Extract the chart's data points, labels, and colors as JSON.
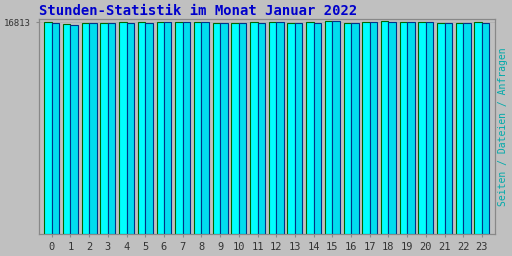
{
  "title": "Stunden-Statistik im Monat Januar 2022",
  "ylabel": "Seiten / Dateien / Anfragen",
  "hours": [
    0,
    1,
    2,
    3,
    4,
    5,
    6,
    7,
    8,
    9,
    10,
    11,
    12,
    13,
    14,
    15,
    16,
    17,
    18,
    19,
    20,
    21,
    22,
    23
  ],
  "values1": [
    16813,
    16650,
    16780,
    16790,
    16800,
    16810,
    16820,
    16840,
    16870,
    16760,
    16790,
    16810,
    16820,
    16790,
    16800,
    16910,
    16790,
    16840,
    16880,
    16875,
    16865,
    16790,
    16795,
    16800
  ],
  "values2": [
    16795,
    16635,
    16760,
    16775,
    16785,
    16795,
    16800,
    16825,
    16855,
    16745,
    16770,
    16790,
    16800,
    16770,
    16782,
    16890,
    16770,
    16820,
    16858,
    16855,
    16845,
    16770,
    16775,
    16782
  ],
  "bar_color1": "#00FFFF",
  "bar_color2": "#00DDEE",
  "bar_edge_color1": "#006600",
  "bar_edge_color2": "#003388",
  "title_color": "#0000CC",
  "ylabel_color": "#00AAAA",
  "background_color": "#C0C0C0",
  "plot_bg_color": "#C0C0C0",
  "axis_label_color": "#333333",
  "ytick_label": "16813",
  "ytick_val": 16813,
  "ymin": 0,
  "ymax": 17050,
  "title_fontsize": 10,
  "ylabel_fontsize": 7,
  "bar_width": 0.4,
  "xlabel_fontsize": 7.5,
  "ytick_fontsize": 6.5
}
